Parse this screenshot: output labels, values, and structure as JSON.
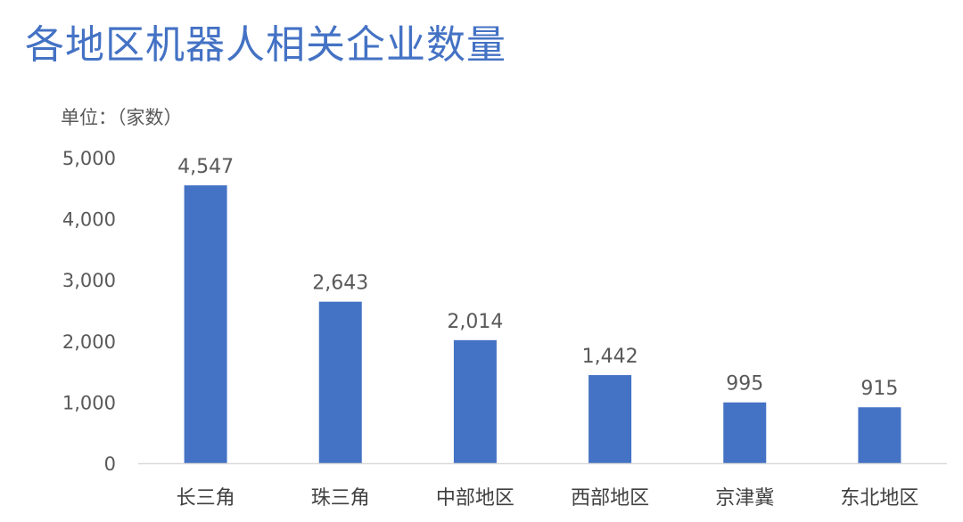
{
  "chart_data": {
    "type": "bar",
    "title": "各地区机器人相关企业数量",
    "unit_label": "单位：（家数）",
    "categories": [
      "长三角",
      "珠三角",
      "中部地区",
      "西部地区",
      "京津冀",
      "东北地区"
    ],
    "values": [
      4547,
      2643,
      2014,
      1442,
      995,
      915
    ],
    "data_labels": [
      "4,547",
      "2,643",
      "2,014",
      "1,442",
      "995",
      "915"
    ],
    "y_ticks": [
      0,
      1000,
      2000,
      3000,
      4000,
      5000
    ],
    "y_tick_labels": [
      "0",
      "1,000",
      "2,000",
      "3,000",
      "4,000",
      "5,000"
    ],
    "ylim": [
      0,
      5000
    ],
    "grid": false,
    "legend": "none",
    "colors": {
      "bar": "#4472c4",
      "title": "#4472c4",
      "axis": "#d9d9d9"
    }
  }
}
